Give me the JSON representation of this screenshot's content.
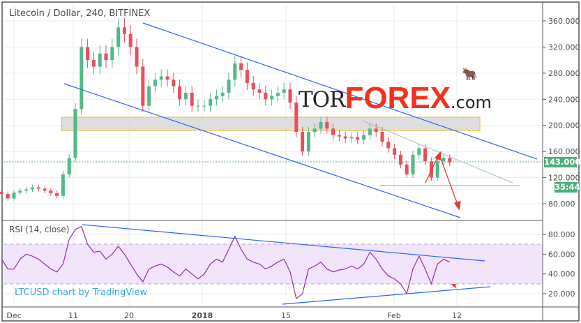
{
  "header": {
    "title": "Litecoin / Dollar, 240, BITFINEX"
  },
  "rsi": {
    "label": "RSI (14, close)"
  },
  "credit": "LTCUSD chart by TradingView",
  "logo": {
    "tor": "TOR",
    "forex": "FOREX",
    "com": ".com"
  },
  "current": {
    "price": "143.000",
    "countdown": "35:44"
  },
  "colors": {
    "up": "#53b987",
    "down": "#eb4d5c",
    "channel": "#2962ff",
    "rsi": "#9c27b0",
    "rsi_band": "#f1e4fb",
    "zone": "#f0c050",
    "arrow": "#e53935",
    "price_line": "#4caf7d"
  },
  "chart_data": [
    {
      "type": "candlestick",
      "ylim": [
        60,
        370
      ],
      "price_axis_ticks": [
        "360.000",
        "320.000",
        "280.000",
        "240.000",
        "200.000",
        "160.000",
        "120.000",
        "80.000"
      ],
      "x_tick_labels": [
        "Dec",
        "11",
        "20",
        "2018",
        "15",
        "Feb",
        "12"
      ],
      "grid": true,
      "dates": [
        "11-29",
        "11-30",
        "12-01",
        "12-02",
        "12-03",
        "12-04",
        "12-05",
        "12-06",
        "12-07",
        "12-08",
        "12-09",
        "12-10",
        "12-11",
        "12-12",
        "12-13",
        "12-14",
        "12-15",
        "12-16",
        "12-17",
        "12-18",
        "12-19",
        "12-20",
        "12-21",
        "12-22",
        "12-23",
        "12-24",
        "12-25",
        "12-26",
        "12-27",
        "12-28",
        "12-29",
        "12-30",
        "12-31",
        "01-01",
        "01-02",
        "01-03",
        "01-04",
        "01-05",
        "01-06",
        "01-07",
        "01-08",
        "01-09",
        "01-10",
        "01-11",
        "01-12",
        "01-13",
        "01-14",
        "01-15",
        "01-16",
        "01-17",
        "01-18",
        "01-19",
        "01-20",
        "01-21",
        "01-22",
        "01-23",
        "01-24",
        "01-25",
        "01-26",
        "01-27",
        "01-28",
        "01-29",
        "01-30",
        "01-31",
        "02-01",
        "02-02",
        "02-03",
        "02-04",
        "02-05",
        "02-06",
        "02-07",
        "02-08",
        "02-09",
        "02-10"
      ],
      "close": [
        95,
        88,
        97,
        100,
        102,
        105,
        103,
        100,
        96,
        92,
        125,
        150,
        225,
        320,
        300,
        290,
        310,
        300,
        320,
        350,
        340,
        320,
        290,
        230,
        260,
        270,
        275,
        270,
        260,
        240,
        250,
        230,
        230,
        230,
        240,
        245,
        250,
        270,
        295,
        285,
        265,
        255,
        250,
        240,
        245,
        250,
        255,
        235,
        190,
        160,
        190,
        195,
        205,
        195,
        185,
        183,
        180,
        182,
        178,
        185,
        195,
        190,
        175,
        165,
        155,
        140,
        125,
        155,
        165,
        145,
        120,
        145,
        150,
        143
      ],
      "support_zone": [
        192,
        210
      ],
      "last_price": 143
    },
    {
      "type": "line",
      "name": "RSI (14, close)",
      "ylim": [
        10,
        92
      ],
      "axis_ticks": [
        "80.000",
        "60.000",
        "40.000",
        "20.000"
      ],
      "band": [
        30,
        70
      ],
      "values": [
        55,
        45,
        45,
        55,
        60,
        58,
        55,
        50,
        45,
        42,
        50,
        75,
        85,
        88,
        70,
        62,
        63,
        55,
        60,
        68,
        60,
        50,
        40,
        32,
        45,
        48,
        50,
        47,
        42,
        38,
        45,
        40,
        35,
        40,
        50,
        55,
        52,
        65,
        78,
        65,
        55,
        52,
        50,
        45,
        48,
        52,
        55,
        42,
        15,
        20,
        45,
        48,
        52,
        45,
        42,
        44,
        45,
        48,
        45,
        50,
        62,
        55,
        45,
        38,
        35,
        30,
        20,
        45,
        58,
        45,
        30,
        50,
        55,
        52
      ]
    }
  ]
}
